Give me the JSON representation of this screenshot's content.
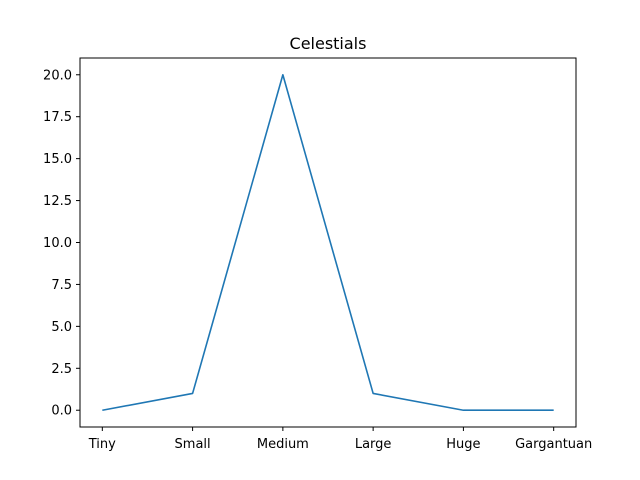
{
  "chart_data": {
    "type": "line",
    "title": "Celestials",
    "xlabel": "",
    "ylabel": "",
    "categories": [
      "Tiny",
      "Small",
      "Medium",
      "Large",
      "Huge",
      "Gargantuan"
    ],
    "series": [
      {
        "values": [
          0,
          1,
          20,
          1,
          0,
          0
        ]
      }
    ],
    "ylim": [
      -1,
      21
    ],
    "yticks": [
      0.0,
      2.5,
      5.0,
      7.5,
      10.0,
      12.5,
      15.0,
      17.5,
      20.0
    ],
    "ytick_labels": [
      "0.0",
      "2.5",
      "5.0",
      "7.5",
      "10.0",
      "12.5",
      "15.0",
      "17.5",
      "20.0"
    ],
    "grid": false,
    "legend": "none",
    "colors": {
      "series": "#1f77b4",
      "axis": "#000000",
      "background": "#ffffff"
    }
  }
}
